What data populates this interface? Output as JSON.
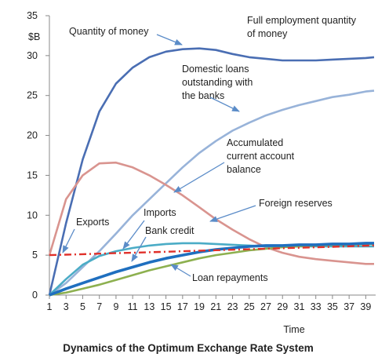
{
  "chart_data": {
    "type": "line",
    "title": "Dynamics of the Optimum Exchange Rate System",
    "x_label": "Time",
    "y_label": "$B",
    "x": [
      1,
      3,
      5,
      7,
      9,
      11,
      13,
      15,
      17,
      19,
      21,
      23,
      25,
      27,
      29,
      31,
      33,
      35,
      37,
      39,
      40
    ],
    "xlim": [
      1,
      40
    ],
    "xticks": [
      1,
      3,
      5,
      7,
      9,
      11,
      13,
      15,
      17,
      19,
      21,
      23,
      25,
      27,
      29,
      31,
      33,
      35,
      37,
      39
    ],
    "ylim": [
      0,
      35
    ],
    "yticks": [
      0,
      5,
      10,
      15,
      20,
      25,
      30,
      35
    ],
    "grid": false,
    "series": [
      {
        "color": "#4a6eb3",
        "style": "solid",
        "values": [
          0,
          9,
          17,
          23,
          26.5,
          28.5,
          29.8,
          30.5,
          30.8,
          30.9,
          30.7,
          30.2,
          29.8,
          29.6,
          29.4,
          29.4,
          29.4,
          29.5,
          29.6,
          29.7,
          29.8
        ]
      },
      {
        "color": "#98b3d9",
        "style": "solid",
        "values": [
          0,
          1.5,
          3.5,
          5.5,
          7.7,
          10,
          12,
          14,
          16,
          17.8,
          19.3,
          20.6,
          21.6,
          22.5,
          23.2,
          23.8,
          24.3,
          24.8,
          25.1,
          25.5,
          25.6
        ]
      },
      {
        "color": "#d9948f",
        "style": "solid",
        "values": [
          5,
          12,
          15,
          16.5,
          16.6,
          16,
          15,
          13.8,
          12.5,
          11,
          9.5,
          8.2,
          7,
          6,
          5.3,
          4.8,
          4.5,
          4.3,
          4.1,
          3.9,
          3.9
        ]
      },
      {
        "color": "#4bacc6",
        "style": "solid",
        "values": [
          0,
          2,
          3.8,
          4.9,
          5.5,
          5.9,
          6.2,
          6.4,
          6.5,
          6.5,
          6.4,
          6.3,
          6.2,
          6.1,
          6.1,
          6.1,
          6.1,
          6.1,
          6.1,
          6.1,
          6.1
        ]
      },
      {
        "color": "#8db04f",
        "style": "solid",
        "values": [
          0,
          0.3,
          0.8,
          1.3,
          1.9,
          2.5,
          3.1,
          3.6,
          4.1,
          4.6,
          5,
          5.3,
          5.6,
          5.8,
          6,
          6.1,
          6.2,
          6.3,
          6.3,
          6.4,
          6.4
        ]
      },
      {
        "color": "#1f6fbf",
        "style": "thick",
        "values": [
          0,
          0.8,
          1.5,
          2.2,
          2.9,
          3.5,
          4.1,
          4.6,
          5,
          5.4,
          5.7,
          5.9,
          6.1,
          6.2,
          6.2,
          6.3,
          6.3,
          6.4,
          6.4,
          6.5,
          6.5
        ]
      },
      {
        "color": "#e0302a",
        "style": "dash-dot",
        "values": [
          5,
          5.06,
          5.12,
          5.19,
          5.25,
          5.31,
          5.37,
          5.43,
          5.5,
          5.56,
          5.62,
          5.68,
          5.74,
          5.81,
          5.87,
          5.93,
          5.99,
          6.05,
          6.12,
          6.18,
          6.21
        ]
      }
    ],
    "annotations": [
      [
        "Quantity of money"
      ],
      [
        "Full employment quantity",
        "of money"
      ],
      [
        "Domestic  loans",
        "outstanding with",
        "the banks"
      ],
      [
        "Accumulated",
        "current account",
        "balance"
      ],
      [
        "Foreign reserves"
      ],
      [
        "Exports"
      ],
      [
        "Imports"
      ],
      [
        "Bank credit"
      ],
      [
        "Loan repayments"
      ]
    ]
  }
}
